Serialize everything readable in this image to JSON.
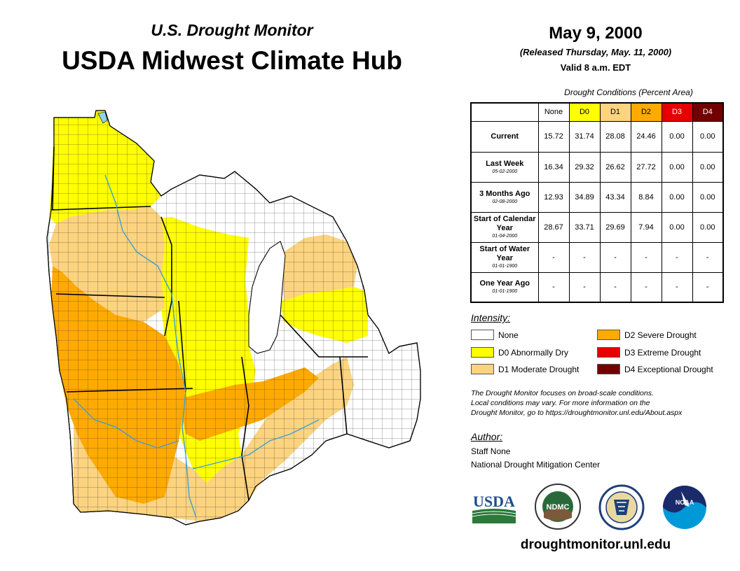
{
  "header": {
    "subtitle": "U.S. Drought Monitor",
    "title": "USDA Midwest Climate Hub"
  },
  "release": {
    "date": "May 9, 2000",
    "released": "(Released Thursday, May. 11, 2000)",
    "valid": "Valid 8 a.m. EDT"
  },
  "conditions_table": {
    "caption": "Drought Conditions (Percent Area)",
    "columns": [
      "None",
      "D0",
      "D1",
      "D2",
      "D3",
      "D4"
    ],
    "column_colors": [
      "#ffffff",
      "#ffff00",
      "#fcd37f",
      "#ffaa00",
      "#e60000",
      "#730000"
    ],
    "rows": [
      {
        "label": "Current",
        "sub": "",
        "values": [
          "15.72",
          "31.74",
          "28.08",
          "24.46",
          "0.00",
          "0.00"
        ]
      },
      {
        "label": "Last Week",
        "sub": "05-02-2000",
        "values": [
          "16.34",
          "29.32",
          "26.62",
          "27.72",
          "0.00",
          "0.00"
        ]
      },
      {
        "label": "3 Months Ago",
        "sub": "02-08-2000",
        "values": [
          "12.93",
          "34.89",
          "43.34",
          "8.84",
          "0.00",
          "0.00"
        ]
      },
      {
        "label": "Start of Calendar Year",
        "sub": "01-04-2000",
        "values": [
          "28.67",
          "33.71",
          "29.69",
          "7.94",
          "0.00",
          "0.00"
        ]
      },
      {
        "label": "Start of Water Year",
        "sub": "01-01-1900",
        "values": [
          "-",
          "-",
          "-",
          "-",
          "-",
          "-"
        ]
      },
      {
        "label": "One Year Ago",
        "sub": "01-01-1900",
        "values": [
          "-",
          "-",
          "-",
          "-",
          "-",
          "-"
        ]
      }
    ]
  },
  "intensity": {
    "title": "Intensity:",
    "items": [
      {
        "label": "None",
        "color": "#ffffff"
      },
      {
        "label": "D0 Abnormally Dry",
        "color": "#ffff00"
      },
      {
        "label": "D1 Moderate Drought",
        "color": "#fcd37f"
      },
      {
        "label": "D2 Severe Drought",
        "color": "#ffaa00"
      },
      {
        "label": "D3 Extreme Drought",
        "color": "#e60000"
      },
      {
        "label": "D4 Exceptional Drought",
        "color": "#730000"
      }
    ]
  },
  "note": {
    "line1": "The Drought Monitor focuses on broad-scale conditions.",
    "line2": "Local conditions may vary. For more information on the",
    "line3": "Drought Monitor, go to https://droughtmonitor.unl.edu/About.aspx"
  },
  "author": {
    "title": "Author:",
    "name": "Staff None",
    "org": "National Drought Mitigation Center"
  },
  "logos": {
    "usda": "USDA",
    "ndmc": "NDMC",
    "noaa": "NOAA"
  },
  "website": "droughtmonitor.unl.edu",
  "colors": {
    "none": "#ffffff",
    "d0": "#ffff00",
    "d1": "#fcd37f",
    "d2": "#ffaa00",
    "water": "#8fd3f0",
    "usda_green": "#2a7a3a",
    "usda_blue": "#1f4e8c",
    "noaa_blue": "#0099d8"
  }
}
